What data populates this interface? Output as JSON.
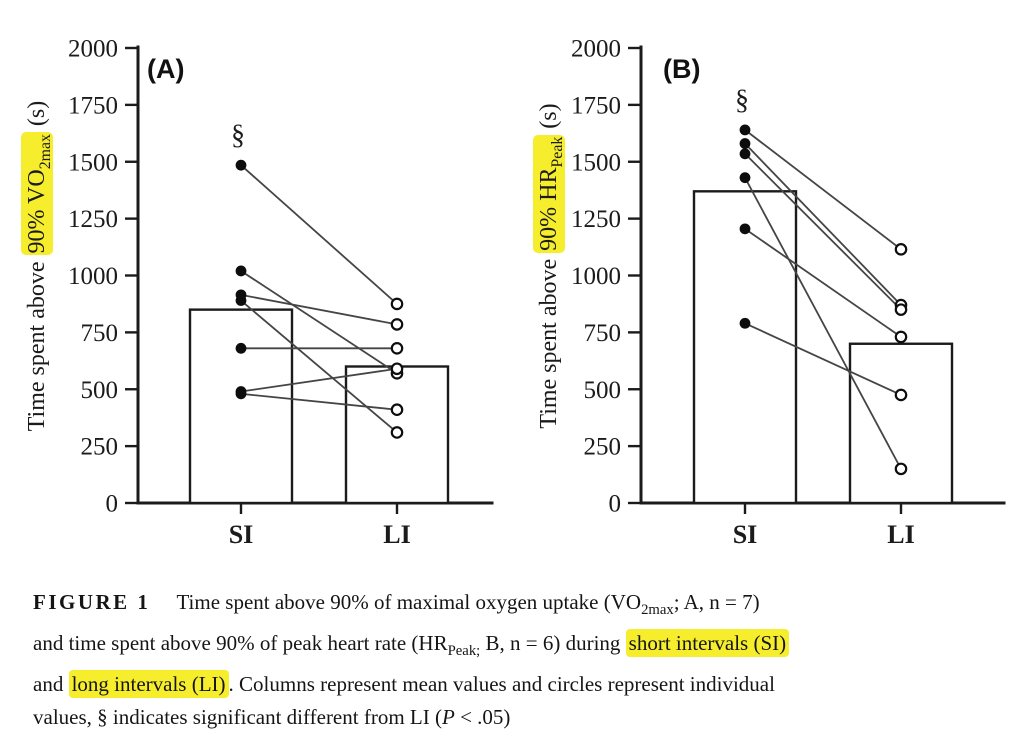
{
  "highlight_color": "#f6ee2d",
  "chart_data": [
    {
      "type": "bar",
      "subtype": "mean-bars-with-paired-individual-points",
      "panel_label": "(A)",
      "ylabel_text": "Time spent above 90% VO2max (s)",
      "ylabel_parts": {
        "pre": "Time spent above ",
        "highlight_main": "90% VO",
        "highlight_sub": "2max",
        "post": " (s)"
      },
      "categories": [
        "SI",
        "LI"
      ],
      "bar_means": [
        850,
        600
      ],
      "pairs": [
        [
          1485,
          875
        ],
        [
          1020,
          570
        ],
        [
          915,
          785
        ],
        [
          890,
          310
        ],
        [
          680,
          680
        ],
        [
          490,
          590
        ],
        [
          480,
          410
        ]
      ],
      "n": 7,
      "sig_symbol": "§",
      "sig_over_category": "SI",
      "ylim": [
        0,
        2000
      ],
      "yticks": [
        0,
        250,
        500,
        750,
        1000,
        1250,
        1500,
        1750,
        2000
      ],
      "grid": "off",
      "legend": "none"
    },
    {
      "type": "bar",
      "subtype": "mean-bars-with-paired-individual-points",
      "panel_label": "(B)",
      "ylabel_text": "Time spent above 90% HRPeak (s)",
      "ylabel_parts": {
        "pre": "Time spent above ",
        "highlight_main": "90% HR",
        "highlight_sub": "Peak",
        "post": " (s)"
      },
      "categories": [
        "SI",
        "LI"
      ],
      "bar_means": [
        1370,
        700
      ],
      "pairs": [
        [
          1640,
          1115
        ],
        [
          1580,
          870
        ],
        [
          1535,
          850
        ],
        [
          1430,
          150
        ],
        [
          1205,
          730
        ],
        [
          790,
          475
        ]
      ],
      "n": 6,
      "sig_symbol": "§",
      "sig_over_category": "SI",
      "ylim": [
        0,
        2000
      ],
      "yticks": [
        0,
        250,
        500,
        750,
        1000,
        1250,
        1500,
        1750,
        2000
      ],
      "grid": "off",
      "legend": "none"
    }
  ],
  "caption": {
    "lines": [
      [
        {
          "t": "FIGURE 1",
          "s": "figlabel"
        },
        {
          "t": "Time spent above 90% of maximal oxygen uptake (VO",
          "s": ""
        },
        {
          "t": "2max",
          "s": "sub"
        },
        {
          "t": "; A, n = 7)",
          "s": ""
        }
      ],
      [
        {
          "t": "and time spent above 90% of peak heart rate (HR",
          "s": ""
        },
        {
          "t": "Peak;",
          "s": "sub"
        },
        {
          "t": " B, n = 6) during ",
          "s": ""
        },
        {
          "t": "short intervals (SI)",
          "s": "hl"
        }
      ],
      [
        {
          "t": "and ",
          "s": ""
        },
        {
          "t": "long intervals (LI)",
          "s": "hl"
        },
        {
          "t": ". Columns represent mean values and circles represent individual",
          "s": ""
        }
      ],
      [
        {
          "t": "values, § indicates significant different from LI (",
          "s": ""
        },
        {
          "t": "P",
          "s": "it"
        },
        {
          "t": " < .05)",
          "s": ""
        }
      ]
    ]
  }
}
